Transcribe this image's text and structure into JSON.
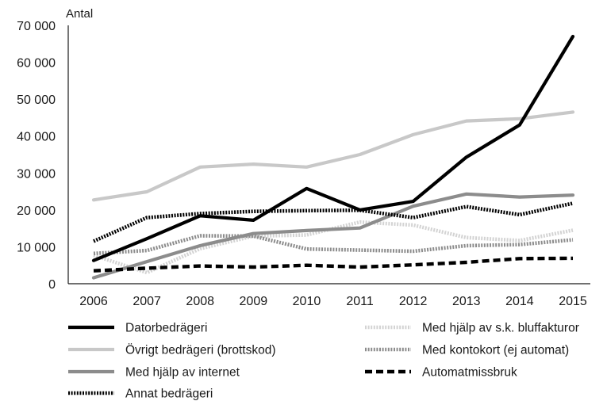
{
  "chart_data": {
    "type": "line",
    "unit_label": "Antal",
    "title": "",
    "xlabel": "",
    "ylabel": "Antal",
    "x": [
      "2006",
      "2007",
      "2008",
      "2009",
      "2010",
      "2011",
      "2012",
      "2013",
      "2014",
      "2015"
    ],
    "ylim": [
      0,
      70000
    ],
    "yticks": [
      0,
      10000,
      20000,
      30000,
      40000,
      50000,
      60000,
      70000
    ],
    "ytick_labels": [
      "0",
      "10 000",
      "20 000",
      "30 000",
      "40 000",
      "50 000",
      "60 000",
      "70 000"
    ],
    "grid": false,
    "legend_position": "bottom",
    "series": [
      {
        "name": "Datorbedrägeri",
        "color": "#000000",
        "style": "solid",
        "values": [
          6300,
          12200,
          18400,
          17200,
          25800,
          20000,
          22300,
          34300,
          43000,
          67000
        ]
      },
      {
        "name": "Övrigt bedrägeri (brottskod)",
        "color": "#c8c8c8",
        "style": "solid",
        "values": [
          22700,
          24900,
          31600,
          32400,
          31600,
          35000,
          40400,
          44100,
          44700,
          46500
        ]
      },
      {
        "name": "Med hjälp av internet",
        "color": "#8c8c8c",
        "style": "solid",
        "values": [
          1600,
          6000,
          10300,
          13600,
          14400,
          15100,
          21000,
          24300,
          23500,
          24000
        ]
      },
      {
        "name": "Annat bedrägeri",
        "color": "#000000",
        "style": "dotted",
        "values": [
          11500,
          17900,
          19000,
          19600,
          19800,
          19900,
          17900,
          20900,
          18700,
          21800
        ]
      },
      {
        "name": "Med hjälp av s.k. bluffakturor",
        "color": "#d3d3d3",
        "style": "dotted",
        "values": [
          7700,
          3000,
          9500,
          12900,
          13200,
          16700,
          15900,
          12500,
          11700,
          14500
        ]
      },
      {
        "name": "Med kontokort (ej automat)",
        "color": "#8c8c8c",
        "style": "dotted",
        "values": [
          8200,
          9000,
          13000,
          12900,
          9400,
          9100,
          8800,
          10300,
          10600,
          11900
        ]
      },
      {
        "name": "Automatmissbruk",
        "color": "#000000",
        "style": "dashed",
        "values": [
          3500,
          4200,
          4800,
          4500,
          5000,
          4500,
          5100,
          5800,
          6800,
          6900
        ]
      }
    ],
    "legend_order": [
      0,
      4,
      1,
      5,
      2,
      6,
      3
    ]
  }
}
